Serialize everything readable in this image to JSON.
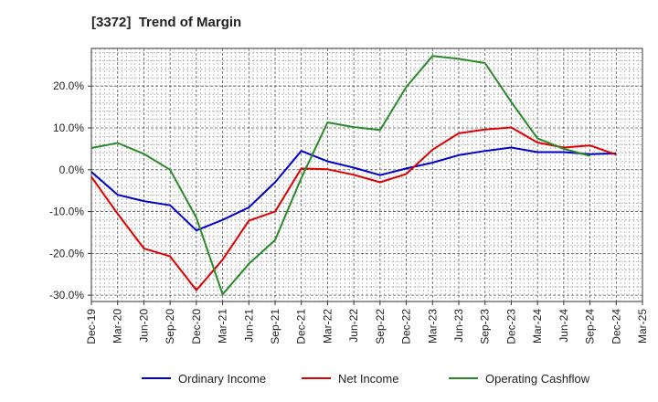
{
  "chart_data": {
    "type": "line",
    "title": "[3372]  Trend of Margin",
    "xlabel": "",
    "ylabel": "",
    "categories": [
      "Dec-19",
      "Mar-20",
      "Jun-20",
      "Sep-20",
      "Dec-20",
      "Mar-21",
      "Jun-21",
      "Sep-21",
      "Dec-21",
      "Mar-22",
      "Jun-22",
      "Sep-22",
      "Dec-22",
      "Mar-23",
      "Jun-23",
      "Sep-23",
      "Dec-23",
      "Mar-24",
      "Jun-24",
      "Sep-24",
      "Dec-24",
      "Mar-25"
    ],
    "y_ticks": [
      20.0,
      10.0,
      0.0,
      -10.0,
      -20.0,
      -30.0
    ],
    "y_tick_labels": [
      "20.0%",
      "10.0%",
      "0.0%",
      "-10.0%",
      "-20.0%",
      "-30.0%"
    ],
    "ylim": [
      -31.5,
      29.0
    ],
    "grid": true,
    "legend_position": "bottom",
    "series": [
      {
        "name": "Ordinary Income",
        "color": "#0000cc",
        "values": [
          -0.5,
          -6.0,
          -7.5,
          -8.5,
          -14.5,
          -12.0,
          -9.0,
          -3.0,
          4.5,
          2.0,
          0.5,
          -1.3,
          0.3,
          1.7,
          3.5,
          4.5,
          5.3,
          4.2,
          4.2,
          3.7,
          3.9,
          null
        ]
      },
      {
        "name": "Net Income",
        "color": "#dd0000",
        "values": [
          -1.7,
          -10.5,
          -18.8,
          -20.7,
          -28.8,
          -21.5,
          -12.2,
          -10.0,
          0.3,
          0.1,
          -1.2,
          -3.0,
          -1.0,
          4.8,
          8.7,
          9.6,
          10.1,
          6.5,
          5.3,
          5.8,
          3.6,
          null
        ]
      },
      {
        "name": "Operating Cashflow",
        "color": "#2a8a2a",
        "values": [
          5.2,
          6.4,
          3.8,
          0.0,
          -11.5,
          -29.8,
          -22.5,
          -16.8,
          -2.0,
          11.3,
          10.2,
          9.5,
          19.8,
          27.2,
          26.5,
          25.5,
          16.2,
          7.5,
          5.0,
          3.3,
          null,
          null
        ]
      }
    ]
  }
}
